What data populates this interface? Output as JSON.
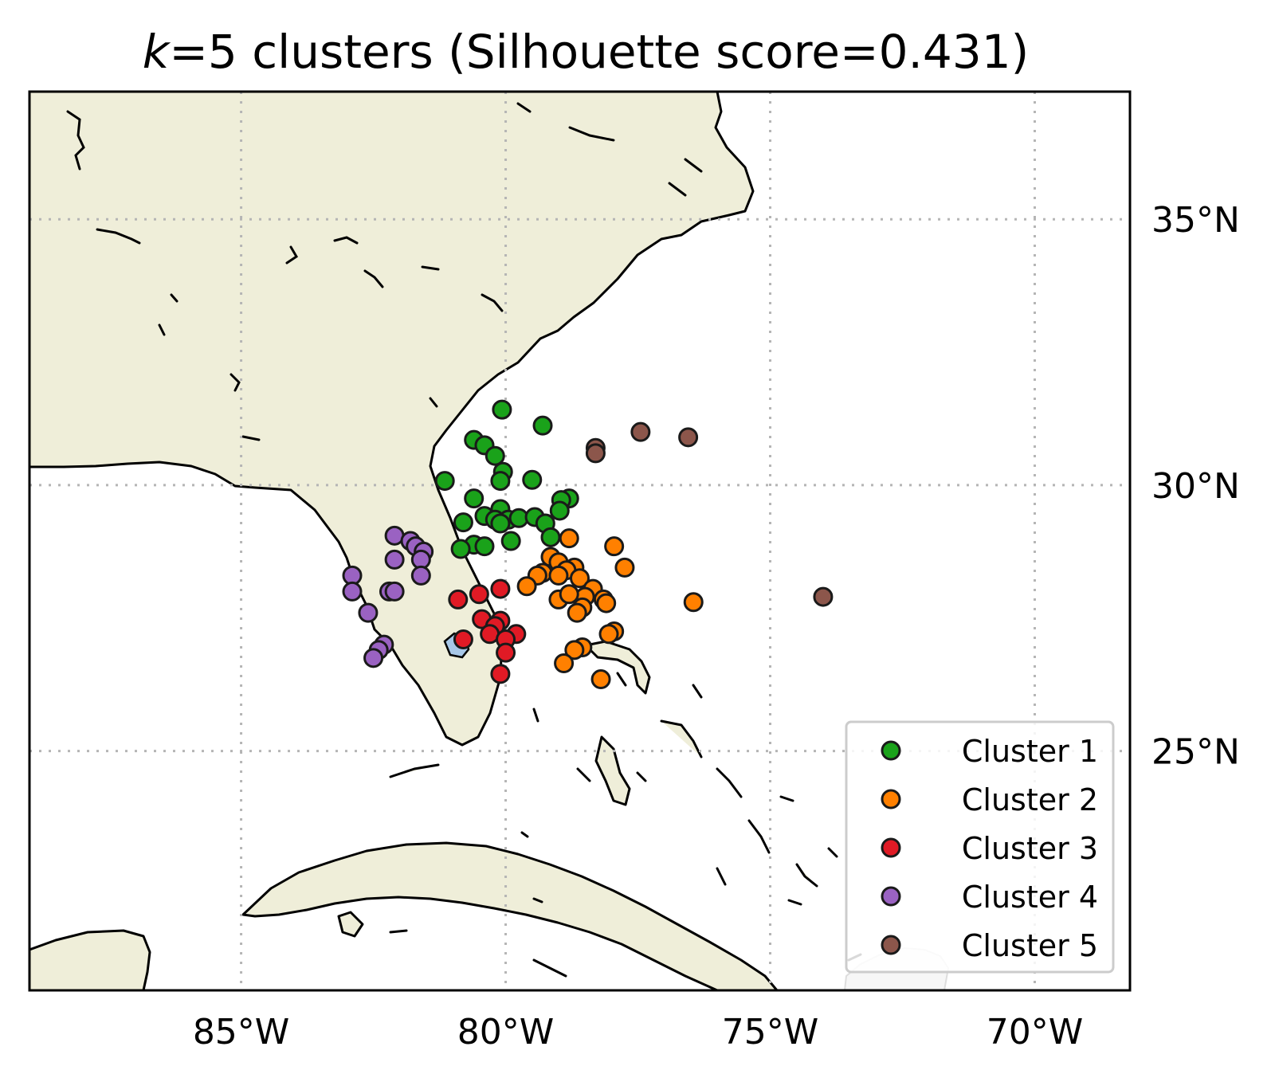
{
  "title": {
    "prefix": "k",
    "rest": "=5 clusters (Silhouette score=0.431)"
  },
  "axes": {
    "lon_ticks": [
      {
        "value": -85,
        "label": "85°W"
      },
      {
        "value": -80,
        "label": "80°W"
      },
      {
        "value": -75,
        "label": "75°W"
      },
      {
        "value": -70,
        "label": "70°W"
      }
    ],
    "lat_ticks": [
      {
        "value": 35,
        "label": "35°N"
      },
      {
        "value": 30,
        "label": "30°N"
      },
      {
        "value": 25,
        "label": "25°N"
      }
    ],
    "lon_range": [
      -89,
      -68.2
    ],
    "lat_range": [
      20.5,
      37.4
    ],
    "grid": "dotted"
  },
  "colors": {
    "land": "#efeed9",
    "ocean": "#ffffff",
    "coast": "#000000",
    "lake": "#a8c8e8",
    "grid": "#b5b5b5"
  },
  "legend": {
    "placement": "bottom-right",
    "entries": [
      {
        "label": "Cluster 1",
        "color": "#1aa21a"
      },
      {
        "label": "Cluster 2",
        "color": "#ff8000"
      },
      {
        "label": "Cluster 3",
        "color": "#e01a25"
      },
      {
        "label": "Cluster 4",
        "color": "#9a62c2"
      },
      {
        "label": "Cluster 5",
        "color": "#8c564b"
      }
    ]
  },
  "chart_data": {
    "type": "scatter",
    "title": "k=5 clusters (Silhouette score=0.431)",
    "series": [
      {
        "name": "Cluster 1",
        "color": "#1aa21a",
        "points": [
          [
            -80.07,
            31.42
          ],
          [
            -79.3,
            31.12
          ],
          [
            -80.6,
            30.85
          ],
          [
            -80.4,
            30.75
          ],
          [
            -80.2,
            30.55
          ],
          [
            -80.05,
            30.25
          ],
          [
            -80.1,
            30.08
          ],
          [
            -81.15,
            30.08
          ],
          [
            -79.5,
            30.1
          ],
          [
            -80.6,
            29.75
          ],
          [
            -78.8,
            29.75
          ],
          [
            -78.95,
            29.72
          ],
          [
            -80.1,
            29.55
          ],
          [
            -80.4,
            29.42
          ],
          [
            -80.2,
            29.35
          ],
          [
            -79.95,
            29.35
          ],
          [
            -80.1,
            29.28
          ],
          [
            -79.75,
            29.38
          ],
          [
            -79.45,
            29.4
          ],
          [
            -79.25,
            29.28
          ],
          [
            -78.98,
            29.52
          ],
          [
            -80.8,
            29.3
          ],
          [
            -80.6,
            28.88
          ],
          [
            -80.4,
            28.85
          ],
          [
            -80.85,
            28.8
          ],
          [
            -79.9,
            28.95
          ],
          [
            -79.15,
            29.02
          ]
        ]
      },
      {
        "name": "Cluster 2",
        "color": "#ff8000",
        "points": [
          [
            -78.8,
            29.0
          ],
          [
            -77.95,
            28.85
          ],
          [
            -79.15,
            28.65
          ],
          [
            -79.0,
            28.55
          ],
          [
            -78.7,
            28.45
          ],
          [
            -78.85,
            28.4
          ],
          [
            -79.3,
            28.35
          ],
          [
            -79.4,
            28.3
          ],
          [
            -77.75,
            28.45
          ],
          [
            -79.0,
            28.3
          ],
          [
            -78.6,
            28.25
          ],
          [
            -79.6,
            28.1
          ],
          [
            -78.35,
            28.05
          ],
          [
            -78.5,
            27.9
          ],
          [
            -79.0,
            27.85
          ],
          [
            -78.8,
            27.95
          ],
          [
            -78.15,
            27.85
          ],
          [
            -78.1,
            27.78
          ],
          [
            -78.55,
            27.7
          ],
          [
            -78.65,
            27.6
          ],
          [
            -76.45,
            27.8
          ],
          [
            -77.95,
            27.25
          ],
          [
            -78.05,
            27.2
          ],
          [
            -78.55,
            26.95
          ],
          [
            -78.7,
            26.9
          ],
          [
            -78.9,
            26.65
          ],
          [
            -78.2,
            26.35
          ]
        ]
      },
      {
        "name": "Cluster 3",
        "color": "#e01a25",
        "points": [
          [
            -80.1,
            28.05
          ],
          [
            -80.5,
            27.95
          ],
          [
            -80.9,
            27.85
          ],
          [
            -80.45,
            27.48
          ],
          [
            -80.1,
            27.45
          ],
          [
            -80.2,
            27.35
          ],
          [
            -80.3,
            27.2
          ],
          [
            -79.8,
            27.2
          ],
          [
            -80.0,
            27.1
          ],
          [
            -80.8,
            27.1
          ],
          [
            -80.0,
            26.85
          ],
          [
            -80.1,
            26.45
          ]
        ]
      },
      {
        "name": "Cluster 4",
        "color": "#9a62c2",
        "points": [
          [
            -82.1,
            29.05
          ],
          [
            -81.8,
            28.95
          ],
          [
            -81.7,
            28.85
          ],
          [
            -81.55,
            28.75
          ],
          [
            -81.6,
            28.6
          ],
          [
            -82.1,
            28.6
          ],
          [
            -81.6,
            28.3
          ],
          [
            -82.9,
            28.3
          ],
          [
            -82.9,
            28.0
          ],
          [
            -82.2,
            28.0
          ],
          [
            -82.1,
            28.0
          ],
          [
            -82.6,
            27.6
          ],
          [
            -82.3,
            27.0
          ],
          [
            -82.4,
            26.9
          ],
          [
            -82.5,
            26.75
          ]
        ]
      },
      {
        "name": "Cluster 5",
        "color": "#8c564b",
        "points": [
          [
            -77.45,
            31.0
          ],
          [
            -76.55,
            30.9
          ],
          [
            -78.3,
            30.7
          ],
          [
            -78.3,
            30.6
          ],
          [
            -74.0,
            27.9
          ]
        ]
      }
    ]
  }
}
